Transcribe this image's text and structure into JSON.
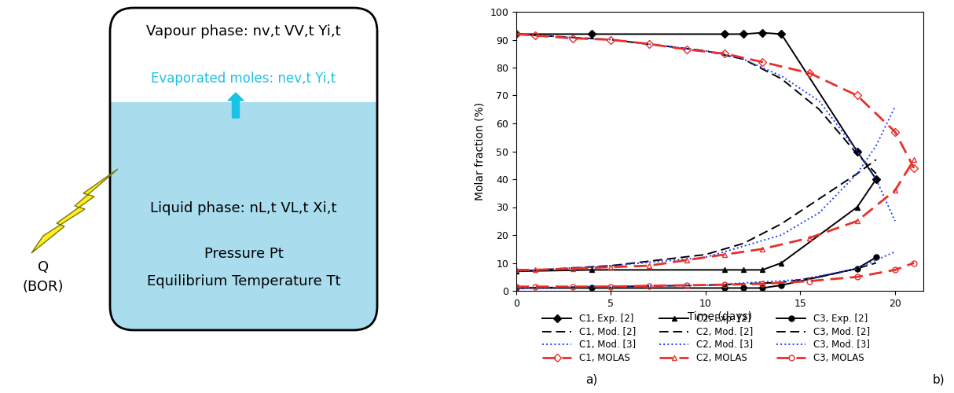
{
  "diagram": {
    "vapour_label": "Vapour phase: nv,t VV,t Yi,t",
    "evaporated_label": "Evaporated moles: nev,t Yi,t",
    "liquid_label": "Liquid phase: nL,t VL,t Xi,t",
    "pressure_label": "Pressure Pt",
    "temperature_label": "Equilibrium Temperature Tt",
    "heat_label": "Q",
    "heat_sublabel": "(BOR)"
  },
  "panel_labels": [
    "a)",
    "b)"
  ],
  "chart_data": {
    "type": "line",
    "x_label": "Time (days)",
    "y_label": "Molar fraction (%)",
    "xlim": [
      0,
      21.5
    ],
    "xticks": [
      0,
      5,
      10,
      15,
      20
    ],
    "ylim": [
      0,
      100
    ],
    "yticks": [
      0,
      10,
      20,
      30,
      40,
      50,
      60,
      70,
      80,
      90,
      100
    ],
    "grid": false,
    "legend": "lower center",
    "series": [
      {
        "name": "C1, Exp. [2]",
        "color": "#000000",
        "line_style": "solid",
        "marker": "diamond",
        "x": [
          0,
          4,
          11,
          12,
          13,
          14,
          18,
          19
        ],
        "values": [
          92,
          92,
          92,
          92,
          92.5,
          92,
          50,
          40
        ]
      },
      {
        "name": "C1, Mod. [2]",
        "color": "#000000",
        "line_style": "dashed",
        "marker": "none",
        "x": [
          0,
          5,
          10,
          12,
          14,
          16,
          17,
          18,
          19
        ],
        "values": [
          92,
          90,
          86,
          83,
          76,
          65,
          57,
          49,
          42
        ]
      },
      {
        "name": "C1, Mod. [3]",
        "color": "#1f3fff",
        "line_style": "dotted",
        "marker": "none",
        "x": [
          0,
          5,
          10,
          12,
          14,
          16,
          18,
          19,
          20
        ],
        "values": [
          92,
          90,
          86,
          83,
          77,
          68,
          50,
          40,
          25
        ]
      },
      {
        "name": "C1, MOLAS",
        "color": "#e8302a",
        "line_style": "dashed",
        "marker": "open_diamond",
        "x": [
          0,
          1,
          3,
          5,
          7,
          9,
          11,
          13,
          15.5,
          18,
          20,
          21
        ],
        "values": [
          92,
          91.5,
          90.5,
          90,
          88.5,
          86.5,
          85,
          82,
          78,
          70,
          57,
          44
        ]
      },
      {
        "name": "C2, Exp. [2]",
        "color": "#000000",
        "line_style": "solid",
        "marker": "triangle",
        "x": [
          0,
          4,
          11,
          12,
          13,
          14,
          18,
          19
        ],
        "values": [
          7,
          7.5,
          7.5,
          7.5,
          7.5,
          10,
          30,
          40
        ]
      },
      {
        "name": "C2, Mod. [2]",
        "color": "#000000",
        "line_style": "dashed",
        "marker": "none",
        "x": [
          0,
          5,
          10,
          12,
          14,
          16,
          18,
          19
        ],
        "values": [
          7,
          9,
          13,
          17,
          24,
          33,
          42,
          47
        ]
      },
      {
        "name": "C2, Mod. [3]",
        "color": "#1f3fff",
        "line_style": "dotted",
        "marker": "none",
        "x": [
          0,
          5,
          10,
          14,
          16,
          18,
          19,
          20
        ],
        "values": [
          7,
          9,
          12,
          20,
          28,
          42,
          52,
          66
        ]
      },
      {
        "name": "C2, MOLAS",
        "color": "#e8302a",
        "line_style": "dashed",
        "marker": "open_triangle",
        "x": [
          0,
          1,
          3,
          5,
          7,
          9,
          11,
          13,
          15.5,
          18,
          20,
          21
        ],
        "values": [
          7.5,
          7.5,
          8,
          8.5,
          9,
          11,
          13,
          15,
          19,
          25,
          36,
          47
        ]
      },
      {
        "name": "C3, Exp. [2]",
        "color": "#000000",
        "line_style": "solid",
        "marker": "circle",
        "x": [
          0,
          4,
          11,
          12,
          13,
          14,
          18,
          19
        ],
        "values": [
          1,
          1,
          1,
          1,
          1,
          2,
          8,
          12
        ]
      },
      {
        "name": "C3, Mod. [2]",
        "color": "#000000",
        "line_style": "dashed",
        "marker": "none",
        "x": [
          0,
          5,
          10,
          14,
          16,
          18,
          19
        ],
        "values": [
          1,
          1.5,
          2,
          3,
          5,
          8,
          10
        ]
      },
      {
        "name": "C3, Mod. [3]",
        "color": "#1f3fff",
        "line_style": "dotted",
        "marker": "none",
        "x": [
          0,
          10,
          15,
          18,
          20
        ],
        "values": [
          1,
          2,
          4,
          8,
          14
        ]
      },
      {
        "name": "C3, MOLAS",
        "color": "#e8302a",
        "line_style": "dashed",
        "marker": "open_circle",
        "x": [
          0,
          1,
          3,
          5,
          7,
          9,
          11,
          13,
          15.5,
          18,
          20,
          21
        ],
        "values": [
          1.5,
          1.5,
          1.5,
          1.5,
          1.8,
          2,
          2.2,
          2.5,
          3.5,
          5,
          7.5,
          10
        ]
      }
    ]
  }
}
